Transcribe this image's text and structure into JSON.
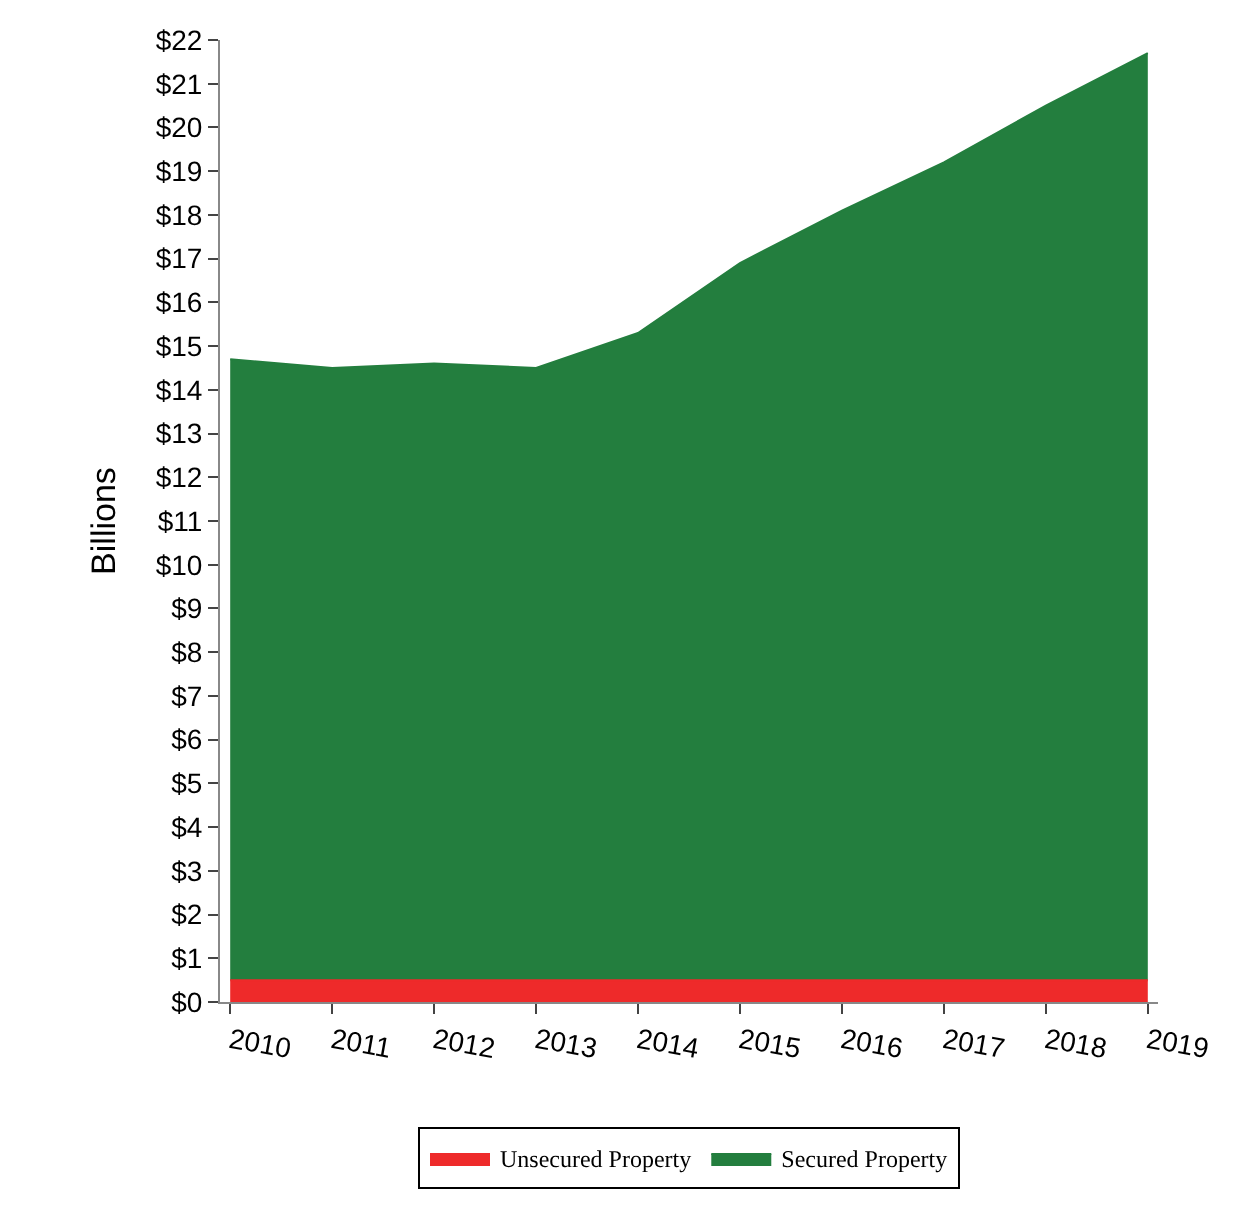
{
  "chart_data": {
    "type": "area",
    "stacked": true,
    "ylabel": "Billions",
    "categories": [
      "2010",
      "2011",
      "2012",
      "2013",
      "2014",
      "2015",
      "2016",
      "2017",
      "2018",
      "2019"
    ],
    "series": [
      {
        "name": "Unsecured Property",
        "color": "#ee2a2a",
        "values": [
          0.5,
          0.5,
          0.5,
          0.5,
          0.5,
          0.5,
          0.5,
          0.5,
          0.5,
          0.5
        ]
      },
      {
        "name": "Secured Property",
        "color": "#237e3e",
        "values": [
          14.2,
          14.0,
          14.1,
          14.0,
          14.8,
          16.4,
          17.6,
          18.7,
          20.0,
          21.2
        ]
      }
    ],
    "ylim": [
      0,
      22
    ],
    "yticks": [
      {
        "value": 0,
        "label": "$0"
      },
      {
        "value": 1,
        "label": "$1"
      },
      {
        "value": 2,
        "label": "$2"
      },
      {
        "value": 3,
        "label": "$3"
      },
      {
        "value": 4,
        "label": "$4"
      },
      {
        "value": 5,
        "label": "$5"
      },
      {
        "value": 6,
        "label": "$6"
      },
      {
        "value": 7,
        "label": "$7"
      },
      {
        "value": 8,
        "label": "$8"
      },
      {
        "value": 9,
        "label": "$9"
      },
      {
        "value": 10,
        "label": "$10"
      },
      {
        "value": 11,
        "label": "$11"
      },
      {
        "value": 12,
        "label": "$12"
      },
      {
        "value": 13,
        "label": "$13"
      },
      {
        "value": 14,
        "label": "$14"
      },
      {
        "value": 15,
        "label": "$15"
      },
      {
        "value": 16,
        "label": "$16"
      },
      {
        "value": 17,
        "label": "$17"
      },
      {
        "value": 18,
        "label": "$18"
      },
      {
        "value": 19,
        "label": "$19"
      },
      {
        "value": 20,
        "label": "$20"
      },
      {
        "value": 21,
        "label": "$21"
      },
      {
        "value": 22,
        "label": "$22"
      }
    ],
    "legend": "bottom"
  }
}
